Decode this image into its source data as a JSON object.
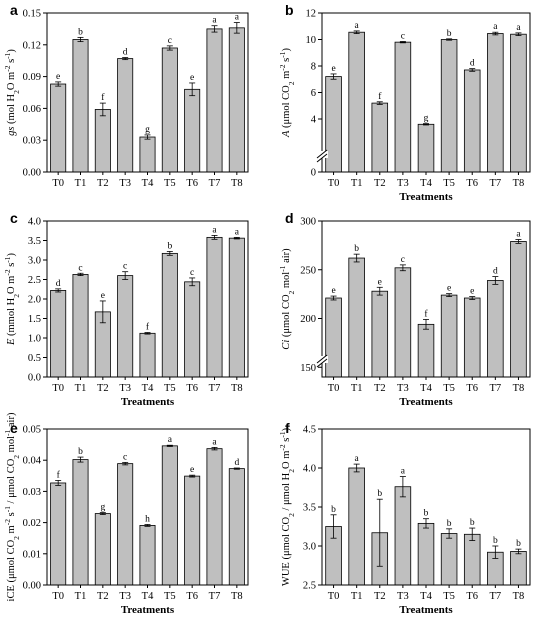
{
  "chart_data": [
    {
      "type": "bar",
      "panel": "a",
      "categories": [
        "T0",
        "T1",
        "T2",
        "T3",
        "T4",
        "T5",
        "T6",
        "T7",
        "T8"
      ],
      "values": [
        0.083,
        0.125,
        0.059,
        0.107,
        0.033,
        0.117,
        0.078,
        0.135,
        0.136
      ],
      "errors": [
        0.002,
        0.002,
        0.006,
        0.001,
        0.002,
        0.002,
        0.006,
        0.003,
        0.005
      ],
      "letters": [
        "e",
        "b",
        "f",
        "d",
        "g",
        "c",
        "e",
        "a",
        "a"
      ],
      "ylabel": "gs (mol H2O m-2 s-1)",
      "ylim": [
        0,
        0.15
      ],
      "yticks": [
        "0.00",
        "0.03",
        "0.06",
        "0.09",
        "0.12",
        "0.15"
      ],
      "xlabel": ""
    },
    {
      "type": "bar",
      "panel": "b",
      "categories": [
        "T0",
        "T1",
        "T2",
        "T3",
        "T4",
        "T5",
        "T6",
        "T7",
        "T8"
      ],
      "values": [
        7.2,
        10.55,
        5.2,
        9.8,
        3.6,
        10.0,
        7.7,
        10.45,
        10.4
      ],
      "errors": [
        0.2,
        0.1,
        0.1,
        0.05,
        0.05,
        0.05,
        0.1,
        0.1,
        0.1
      ],
      "letters": [
        "e",
        "a",
        "f",
        "c",
        "g",
        "b",
        "d",
        "a",
        "a"
      ],
      "ylabel": "A (μmol CO2 m-2 s-1)",
      "ylim": [
        0,
        12
      ],
      "yticks": [
        "0",
        "4",
        "6",
        "8",
        "10",
        "12"
      ],
      "axis_break": true,
      "xlabel": "Treatments"
    },
    {
      "type": "bar",
      "panel": "c",
      "categories": [
        "T0",
        "T1",
        "T2",
        "T3",
        "T4",
        "T5",
        "T6",
        "T7",
        "T8"
      ],
      "values": [
        2.22,
        2.63,
        1.67,
        2.6,
        1.12,
        3.17,
        2.44,
        3.58,
        3.56
      ],
      "errors": [
        0.04,
        0.03,
        0.28,
        0.1,
        0.02,
        0.05,
        0.1,
        0.05,
        0.02
      ],
      "letters": [
        "d",
        "c",
        "e",
        "c",
        "f",
        "b",
        "c",
        "a",
        "a"
      ],
      "ylabel": "E (mmol H2O m-2 s-1)",
      "ylim": [
        0,
        4
      ],
      "yticks": [
        "0.0",
        "0.5",
        "1.0",
        "1.5",
        "2.0",
        "2.5",
        "3.0",
        "3.5",
        "4.0"
      ],
      "xlabel": "Treatments"
    },
    {
      "type": "bar",
      "panel": "d",
      "categories": [
        "T0",
        "T1",
        "T2",
        "T3",
        "T4",
        "T5",
        "T6",
        "T7",
        "T8"
      ],
      "values": [
        221,
        262,
        228,
        252,
        194,
        224,
        221,
        239,
        279
      ],
      "errors": [
        2,
        4,
        4,
        3,
        5,
        1.5,
        1.5,
        4,
        2
      ],
      "letters": [
        "e",
        "b",
        "e",
        "c",
        "f",
        "e",
        "e",
        "d",
        "a"
      ],
      "ylabel": "Ci (μmol CO2 mol-1 air)",
      "ylim": [
        140,
        300
      ],
      "yticks": [
        "150",
        "200",
        "250",
        "300"
      ],
      "axis_break": true,
      "xlabel": "Treatments"
    },
    {
      "type": "bar",
      "panel": "e",
      "categories": [
        "T0",
        "T1",
        "T2",
        "T3",
        "T4",
        "T5",
        "T6",
        "T7",
        "T8"
      ],
      "values": [
        0.0327,
        0.0402,
        0.0229,
        0.0389,
        0.0191,
        0.0446,
        0.0349,
        0.0437,
        0.0373
      ],
      "errors": [
        0.0008,
        0.0008,
        0.0003,
        0.0004,
        0.0003,
        0.0002,
        0.0003,
        0.0004,
        0.0002
      ],
      "letters": [
        "f",
        "b",
        "g",
        "c",
        "h",
        "a",
        "e",
        "a",
        "d"
      ],
      "ylabel": "iCE (μmol CO2 m-2 s-1 / μmol CO2 mol-1 air)",
      "ylim": [
        0,
        0.05
      ],
      "yticks": [
        "0.00",
        "0.01",
        "0.02",
        "0.03",
        "0.04",
        "0.05"
      ],
      "xlabel": "Treatments"
    },
    {
      "type": "bar",
      "panel": "f",
      "categories": [
        "T0",
        "T1",
        "T2",
        "T3",
        "T4",
        "T5",
        "T6",
        "T7",
        "T8"
      ],
      "values": [
        3.25,
        4.0,
        3.17,
        3.76,
        3.29,
        3.16,
        3.15,
        2.92,
        2.93
      ],
      "errors": [
        0.15,
        0.05,
        0.43,
        0.13,
        0.06,
        0.06,
        0.08,
        0.08,
        0.03
      ],
      "letters": [
        "b",
        "a",
        "b",
        "a",
        "b",
        "b",
        "b",
        "b",
        "b"
      ],
      "ylabel": "WUE (μmol CO2 / μmol H2O m-2 s-1)",
      "ylim": [
        2.5,
        4.5
      ],
      "yticks": [
        "2.5",
        "3.0",
        "3.5",
        "4.0",
        "4.5"
      ],
      "xlabel": "Treatments"
    }
  ]
}
